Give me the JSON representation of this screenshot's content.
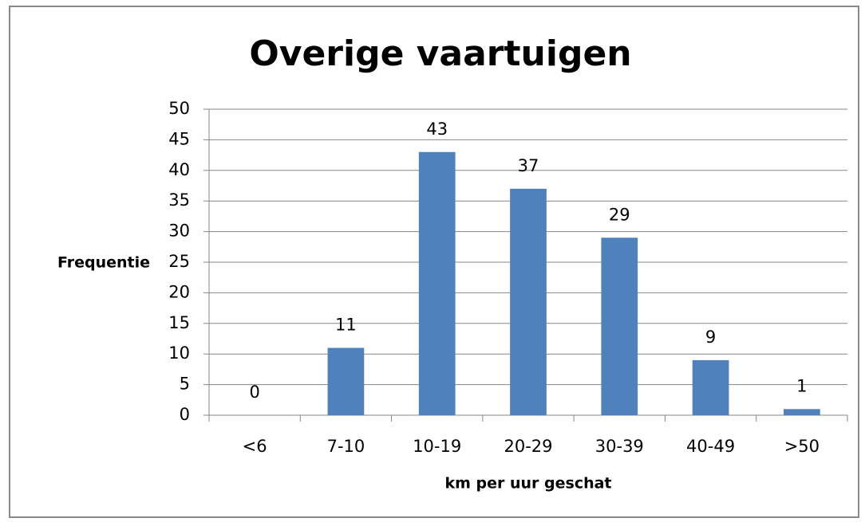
{
  "chart_data": {
    "type": "bar",
    "title": "Overige vaartuigen",
    "x_label": "km per uur geschat",
    "y_label": "Frequentie",
    "categories": [
      "<6",
      "7-10",
      "10-19",
      "20-29",
      "30-39",
      "40-49",
      ">50"
    ],
    "values": [
      0,
      11,
      43,
      37,
      29,
      9,
      1
    ],
    "color": "#4f81bd",
    "ylim": [
      0,
      50
    ],
    "yticks": [
      0,
      5,
      10,
      15,
      20,
      25,
      30,
      35,
      40,
      45,
      50
    ],
    "grid": true,
    "data_labels": true
  }
}
